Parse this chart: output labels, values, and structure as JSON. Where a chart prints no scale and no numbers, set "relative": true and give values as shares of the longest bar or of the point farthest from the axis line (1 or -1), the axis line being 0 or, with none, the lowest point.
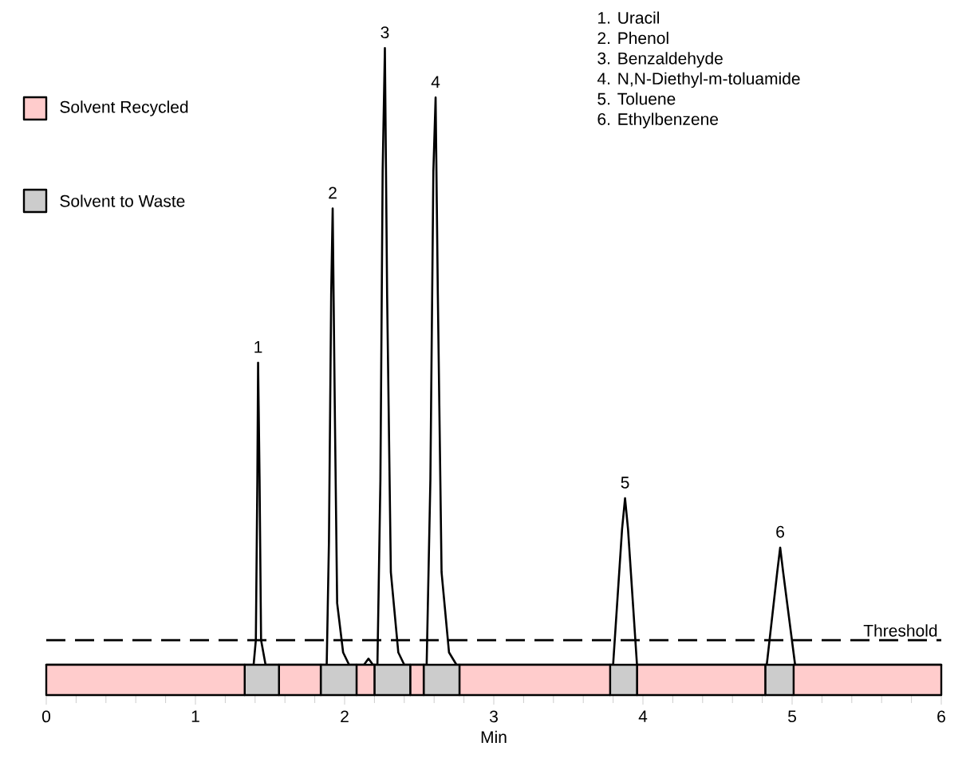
{
  "chart_data": [
    {
      "type": "line",
      "relative": true,
      "tick_labels": false,
      "xlim": [
        0,
        6
      ],
      "x": [
        0,
        1.39,
        1.405,
        1.415,
        1.42,
        1.43,
        1.44,
        1.47,
        1.88,
        1.895,
        1.91,
        1.92,
        1.935,
        1.95,
        1.99,
        2.03,
        2.13,
        2.16,
        2.19,
        2.22,
        2.24,
        2.255,
        2.27,
        2.285,
        2.31,
        2.36,
        2.4,
        2.55,
        2.575,
        2.595,
        2.61,
        2.625,
        2.65,
        2.7,
        2.75,
        3.8,
        3.86,
        3.88,
        3.9,
        3.96,
        4.83,
        4.9,
        4.92,
        4.94,
        5.02,
        6
      ],
      "series": [
        {
          "color": "#000000",
          "values": [
            0,
            0,
            0.04,
            0.3,
            0.49,
            0.3,
            0.04,
            0,
            0,
            0.2,
            0.6,
            0.74,
            0.4,
            0.1,
            0.02,
            0,
            0,
            0.01,
            0,
            0,
            0.3,
            0.8,
            1,
            0.6,
            0.15,
            0.02,
            0,
            0,
            0.3,
            0.8,
            0.92,
            0.6,
            0.15,
            0.02,
            0,
            0,
            0.22,
            0.27,
            0.22,
            0,
            0,
            0.15,
            0.19,
            0.15,
            0,
            0
          ]
        }
      ],
      "marker": "none",
      "line_style": "solid",
      "ref_lines": [
        {
          "axis": "y",
          "value": 0.04,
          "label": "Threshold",
          "line_style": "dashed",
          "color": "#000000"
        }
      ],
      "annotations": [
        {
          "text": "1",
          "x": 1.42,
          "y": 0.49
        },
        {
          "text": "2",
          "x": 1.92,
          "y": 0.74
        },
        {
          "text": "3",
          "x": 2.27,
          "y": 1
        },
        {
          "text": "4",
          "x": 2.61,
          "y": 0.92
        },
        {
          "text": "5",
          "x": 3.88,
          "y": 0.27
        },
        {
          "text": "6",
          "x": 4.92,
          "y": 0.19
        },
        "1.    Uracil",
        "2.    Phenol",
        "3.    Benzaldehyde",
        "4.    N,N-Diethyl-m-toluamide",
        "5.    Toluene",
        "6.    Ethylbenzene"
      ]
    },
    {
      "type": "bar",
      "orientation": "horizontal",
      "stacked": true,
      "categories": [
        null
      ],
      "xlim": [
        0,
        6
      ],
      "xticks": [
        0,
        1,
        2,
        3,
        4,
        5,
        6
      ],
      "xlabel": "Min",
      "tick_labels": "x",
      "legend": "top left",
      "series": [
        {
          "name": "Solvent Recycled",
          "color": "#ffcccc",
          "values": [
            1.33
          ]
        },
        {
          "name": "Solvent to Waste",
          "color": "#cccccc",
          "values": [
            0.23
          ]
        },
        {
          "color": "#ffcccc",
          "values": [
            0.28
          ]
        },
        {
          "color": "#cccccc",
          "values": [
            0.24
          ]
        },
        {
          "color": "#ffcccc",
          "values": [
            0.12
          ]
        },
        {
          "color": "#cccccc",
          "values": [
            0.24
          ]
        },
        {
          "color": "#ffcccc",
          "values": [
            0.09
          ]
        },
        {
          "color": "#cccccc",
          "values": [
            0.24
          ]
        },
        {
          "color": "#ffcccc",
          "values": [
            1.01
          ]
        },
        {
          "color": "#cccccc",
          "values": [
            0.18
          ]
        },
        {
          "color": "#ffcccc",
          "values": [
            0.86
          ]
        },
        {
          "color": "#cccccc",
          "values": [
            0.19
          ]
        },
        {
          "color": "#ffcccc",
          "values": [
            0.99
          ]
        }
      ]
    }
  ]
}
